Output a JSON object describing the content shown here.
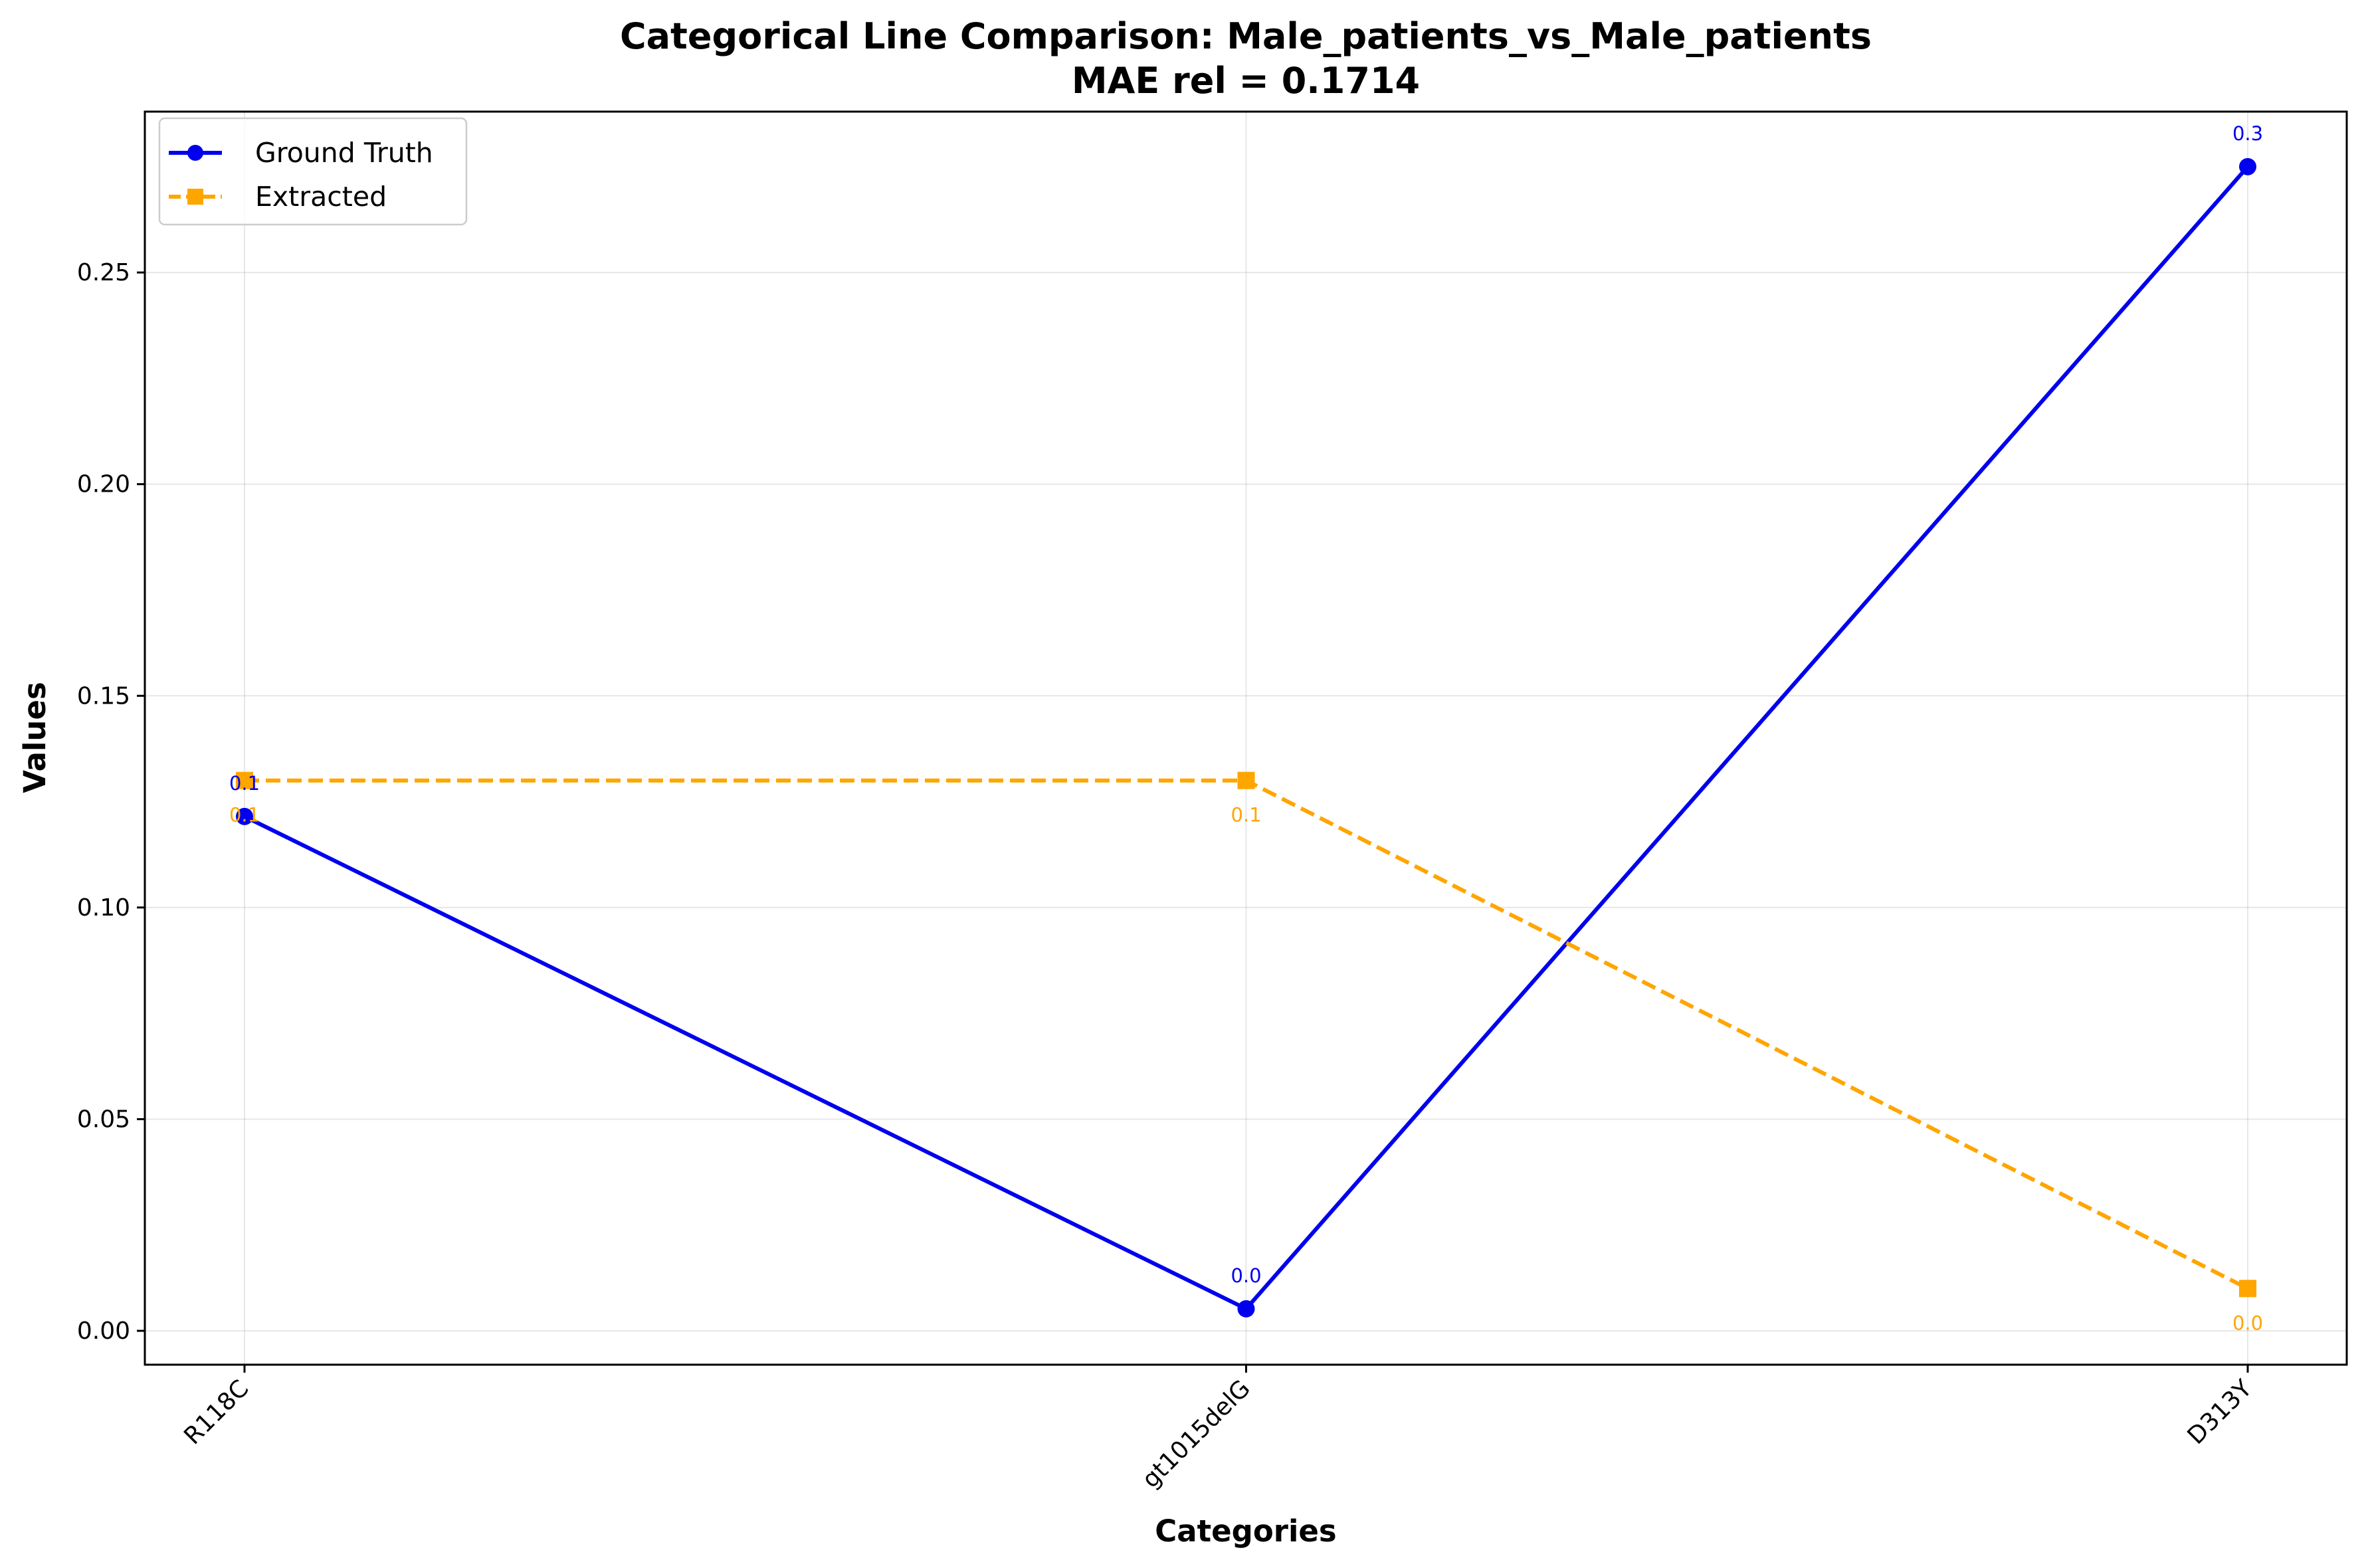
{
  "chart_data": {
    "type": "line",
    "title": "Categorical Line Comparison: Male_patients_vs_Male_patients",
    "subtitle": "MAE rel = 0.1714",
    "xlabel": "Categories",
    "ylabel": "Values",
    "categories": [
      "R118C",
      "gt1015delG",
      "D313Y"
    ],
    "ylim": [
      -0.008,
      0.288
    ],
    "yticks": [
      0.0,
      0.05,
      0.1,
      0.15,
      0.2,
      0.25
    ],
    "ytick_labels": [
      "0.00",
      "0.05",
      "0.10",
      "0.15",
      "0.20",
      "0.25"
    ],
    "grid": true,
    "legend_position": "top-left",
    "series": [
      {
        "name": "Ground Truth",
        "values": [
          0.1215,
          0.0052,
          0.275
        ],
        "labels": [
          "0.1",
          "0.0",
          "0.3"
        ],
        "label_position": "above",
        "color": "#0000ee",
        "line_style": "solid",
        "marker": "circle"
      },
      {
        "name": "Extracted",
        "values": [
          0.13,
          0.13,
          0.01
        ],
        "labels": [
          "0.1",
          "0.1",
          "0.0"
        ],
        "label_position": "below",
        "color": "#ffa500",
        "line_style": "dashed",
        "marker": "square"
      }
    ]
  }
}
